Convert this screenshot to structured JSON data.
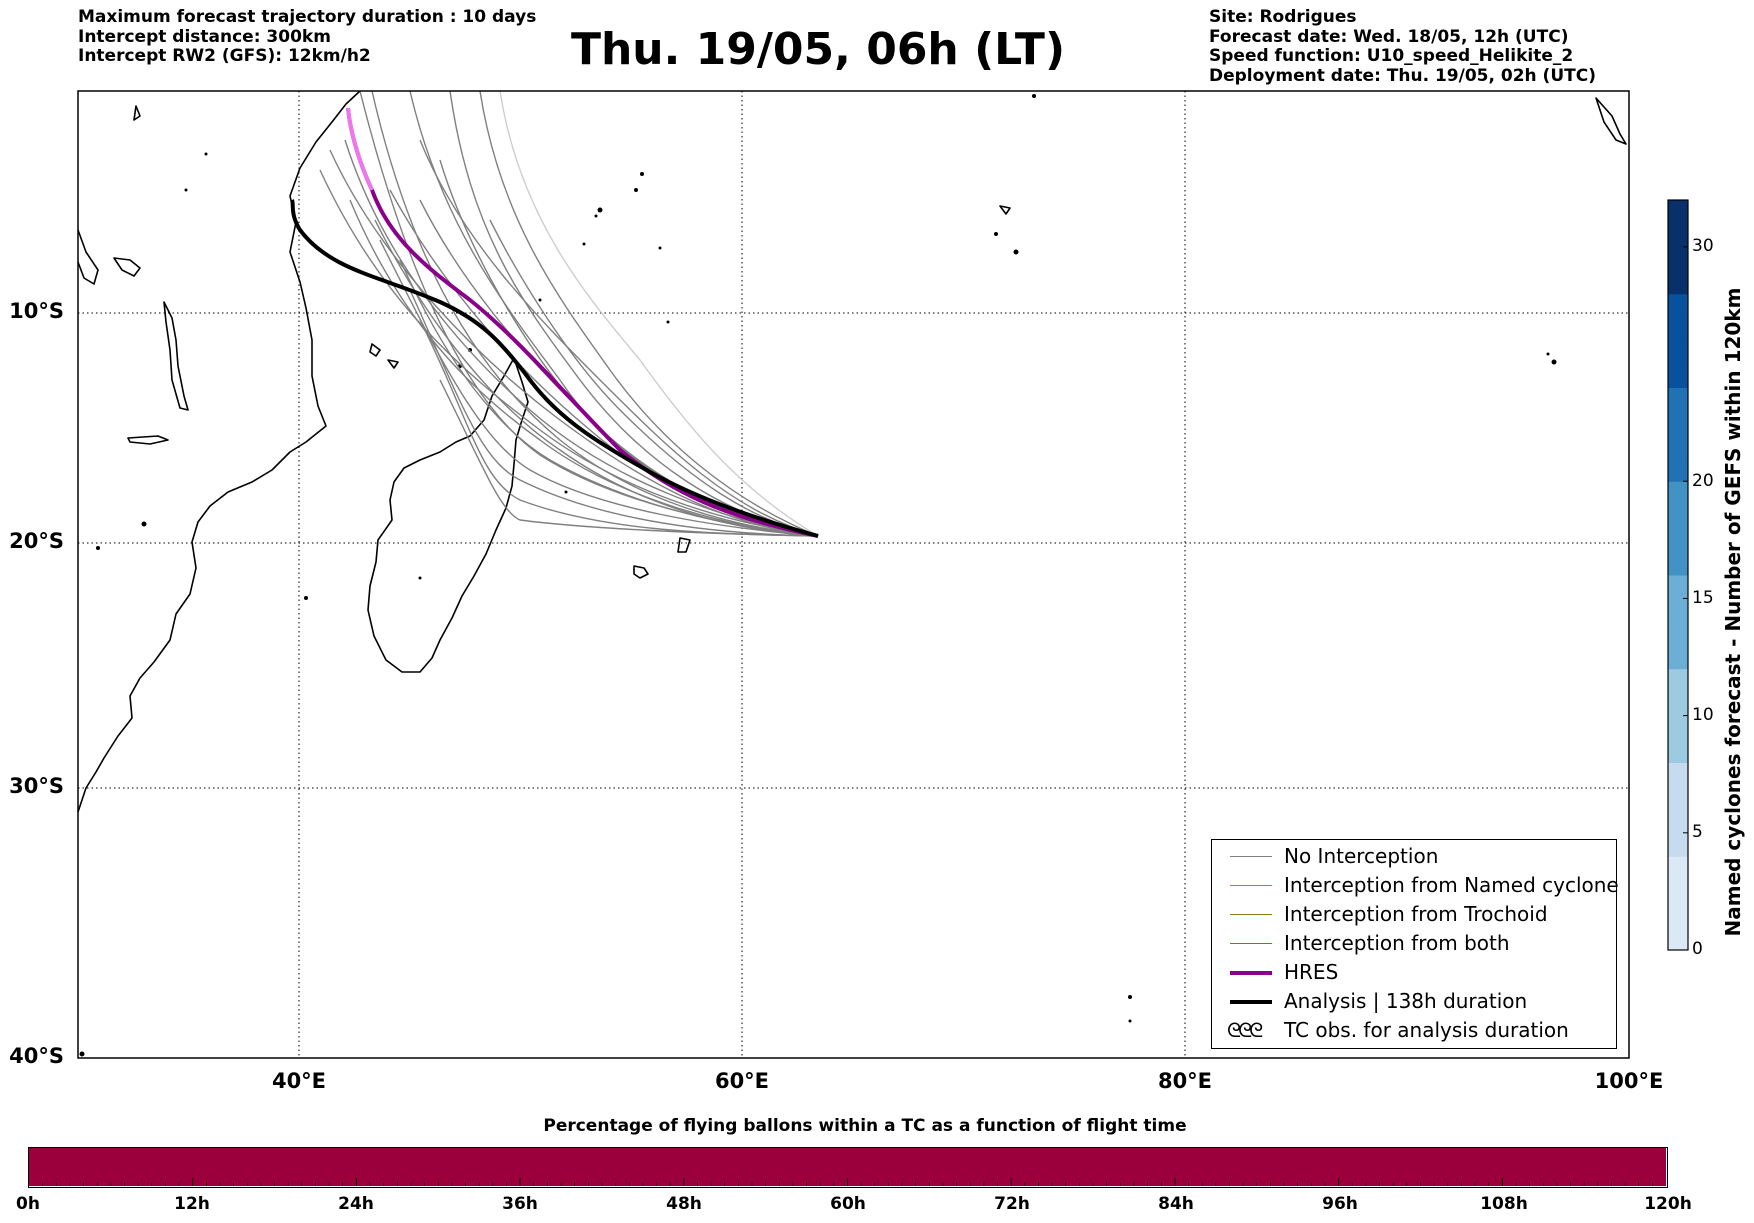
{
  "header_left": [
    "Maximum forecast trajectory duration : 10 days",
    "Intercept distance: 300km",
    "Intercept RW2 (GFS):  12km/h2"
  ],
  "header_right": [
    "Site: Rodrigues",
    "Forecast date: Wed. 18/05, 12h (UTC)",
    "Speed function: U10_speed_Helikite_2",
    "Deployment date: Thu. 19/05, 02h (UTC)"
  ],
  "title": "Thu. 19/05, 06h (LT)",
  "map": {
    "lat_labels": [
      "10°S",
      "20°S",
      "30°S",
      "40°S"
    ],
    "lon_labels": [
      "40°E",
      "60°E",
      "80°E",
      "100°E"
    ],
    "grid_style": "dotted",
    "lon_range": [
      30,
      100
    ],
    "lat_range": [
      -40,
      0
    ]
  },
  "legend": [
    {
      "label": "No Interception",
      "color": "#7f7f7f",
      "style": "thin"
    },
    {
      "label": "Interception from Named cyclone",
      "color": "#e8622a",
      "style": "thin"
    },
    {
      "label": "Interception from Trochoid",
      "color": "#8a7a1a",
      "style": "thin"
    },
    {
      "label": "Interception from both",
      "color": "#2a9a2a",
      "style": "thin"
    },
    {
      "label": "HRES",
      "color": "#8b008b",
      "style": "thick"
    },
    {
      "label": "Analysis | 138h duration",
      "color": "#000000",
      "style": "thick"
    },
    {
      "label": "TC obs. for analysis duration",
      "symbol": "ᘓᘓᘓ",
      "style": "symbol"
    }
  ],
  "colorbar": {
    "label": "Named cyclones forecast - Number of GEFS within 120km",
    "ticks": [
      "30",
      "20",
      "15",
      "10",
      "5",
      "0"
    ],
    "tick_values": [
      30,
      20,
      15,
      10,
      5,
      0
    ],
    "range": [
      0,
      32
    ],
    "colors": [
      "#dbe9f6",
      "#c6dbef",
      "#9ecae1",
      "#6baed6",
      "#4292c6",
      "#2171b5",
      "#08519c",
      "#08306b"
    ]
  },
  "flight_bar": {
    "title": "Percentage of flying ballons within a TC as a function of flight time",
    "labels": [
      "0h",
      "12h",
      "24h",
      "36h",
      "48h",
      "60h",
      "72h",
      "84h",
      "96h",
      "108h",
      "120h"
    ],
    "color": "#9b003c"
  }
}
